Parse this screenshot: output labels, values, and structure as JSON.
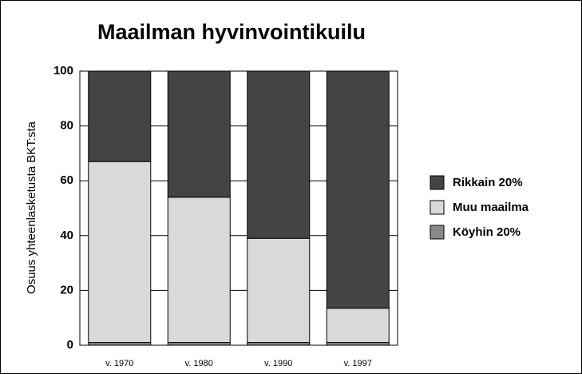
{
  "chart_data": {
    "type": "stacked_bar",
    "title": "Maailman hyvinvointikuilu",
    "y_label": "Osuus yhteenlasketusta BKT:sta",
    "categories": [
      "v. 1970",
      "v. 1980",
      "v. 1990",
      "v. 1997"
    ],
    "series": [
      {
        "name": "Rikkain 20%",
        "color": "#444444",
        "values": [
          33,
          46,
          61,
          86.5
        ]
      },
      {
        "name": "Muu maailma",
        "color": "#d9d9d9",
        "values": [
          66,
          53,
          38,
          12.5
        ]
      },
      {
        "name": "Köyhin 20%",
        "color": "#888888",
        "values": [
          1,
          1,
          1,
          1
        ]
      }
    ],
    "ylim": [
      0,
      100
    ],
    "yticks": [
      0,
      20,
      40,
      60,
      80,
      100
    ],
    "grid": true,
    "legend": "right"
  }
}
